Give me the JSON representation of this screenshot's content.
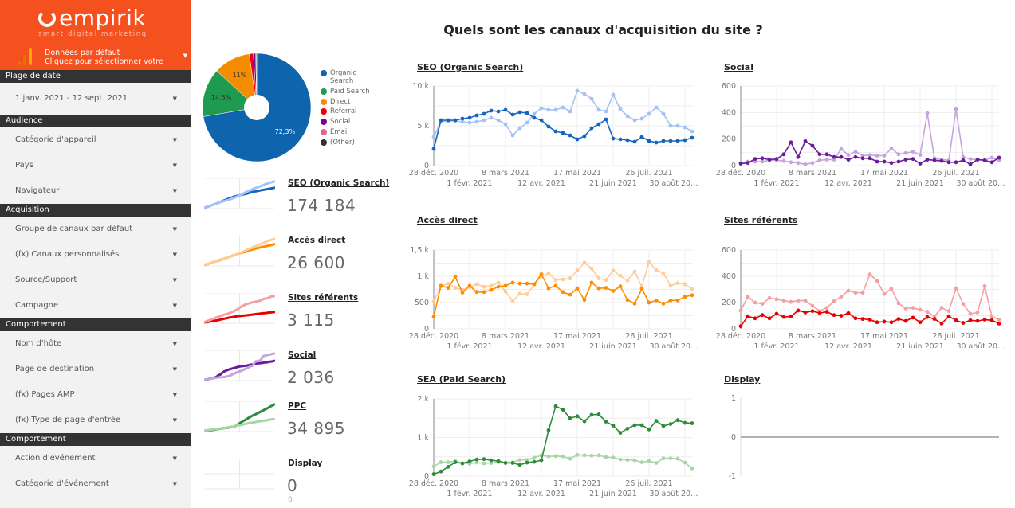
{
  "brand": {
    "logo_text": "empirik",
    "tagline": "smart digital marketing",
    "colors": {
      "header": "#f5511f"
    }
  },
  "data_source": {
    "line1": "Données par défaut",
    "line2": "Cliquez pour sélectionner votre",
    "icon": "analytics-bars-icon"
  },
  "sidebar": {
    "groups": [
      {
        "label": "Plage de date",
        "items": [
          "1 janv. 2021 - 12 sept. 2021"
        ]
      },
      {
        "label": "Audience",
        "items": [
          "Catégorie d'appareil",
          "Pays",
          "Navigateur"
        ]
      },
      {
        "label": "Acquisition",
        "items": [
          "Groupe de canaux par défaut",
          "(fx) Canaux personnalisés",
          "Source/Support",
          "Campagne"
        ]
      },
      {
        "label": "Comportement",
        "items": [
          "Nom d'hôte",
          "Page de destination",
          "(fx) Pages AMP",
          "(fx) Type de page d'entrée"
        ]
      },
      {
        "label": "Comportement",
        "items": [
          "Action d'événement",
          "Catégorie d'événement"
        ]
      }
    ]
  },
  "page_title": "Quels sont les canaux d'acquisition du site ?",
  "kpis": [
    {
      "title": "SEO (Organic Search)",
      "value": "174 184",
      "colors": [
        "#1565c0",
        "#a4c2f4"
      ],
      "chart": 0
    },
    {
      "title": "Accès direct",
      "value": "26 600",
      "colors": [
        "#ff8c00",
        "#ffcc99"
      ],
      "chart": 2
    },
    {
      "title": "Sites référents",
      "value": "3 115",
      "colors": [
        "#e60000",
        "#f4a0a0"
      ],
      "chart": 3
    },
    {
      "title": "Social",
      "value": "2 036",
      "colors": [
        "#6a1b9a",
        "#c5a3dc"
      ],
      "chart": 1
    },
    {
      "title": "PPC",
      "value": "34 895",
      "colors": [
        "#2e8b3a",
        "#a8d5a8"
      ],
      "chart": 4
    },
    {
      "title": "Display",
      "value": "0",
      "sub": "0",
      "chart": null
    }
  ],
  "chart_data": [
    {
      "type": "pie",
      "donut": true,
      "slices": [
        {
          "label": "Organic Search",
          "value": 72.3,
          "data_label": "72,3%",
          "color": "#0f64ae"
        },
        {
          "label": "Paid Search",
          "value": 14.5,
          "data_label": "14,5%",
          "color": "#1e9b50"
        },
        {
          "label": "Direct",
          "value": 11,
          "data_label": "11%",
          "color": "#f38c00"
        },
        {
          "label": "Referral",
          "value": 1.2,
          "color": "#e8000b"
        },
        {
          "label": "Social",
          "value": 0.7,
          "color": "#7b0099"
        },
        {
          "label": "Email",
          "value": 0.1,
          "color": "#ef5f8e"
        },
        {
          "label": "(Other)",
          "value": 0.2,
          "color": "#333333"
        }
      ],
      "legend": "right"
    },
    {
      "type": "line",
      "title": "SEO (Organic Search)",
      "ylim": [
        0,
        10000
      ],
      "y_ticks": [
        "0",
        "5 k",
        "10 k"
      ],
      "y_tick_values": [
        0,
        5000,
        10000
      ],
      "x_ticks": [
        "28 déc. 2020",
        "1 févr. 2021",
        "8 mars 2021",
        "12 avr. 2021",
        "17 mai 2021",
        "21 juin 2021",
        "26 juil. 2021",
        "30 août 20…"
      ],
      "series": [
        {
          "color": "#a4c2f4",
          "values": [
            3600,
            5500,
            5600,
            5600,
            5500,
            5400,
            5500,
            5700,
            6000,
            5700,
            5200,
            3800,
            4700,
            5400,
            6500,
            7200,
            7000,
            7000,
            7300,
            6800,
            9400,
            9000,
            8400,
            7000,
            6800,
            8900,
            7100,
            6200,
            5700,
            5900,
            6500,
            7300,
            6500,
            5000,
            5000,
            4800,
            4300
          ]
        },
        {
          "color": "#1565c0",
          "values": [
            2100,
            5700,
            5700,
            5700,
            5900,
            6000,
            6300,
            6500,
            6900,
            6800,
            7000,
            6400,
            6700,
            6600,
            6000,
            5700,
            4900,
            4300,
            4100,
            3800,
            3300,
            3700,
            4700,
            5200,
            5800,
            3400,
            3300,
            3200,
            3000,
            3600,
            3100,
            2900,
            3100,
            3100,
            3100,
            3200,
            3500
          ]
        }
      ]
    },
    {
      "type": "line",
      "title": "Social",
      "ylim": [
        0,
        600
      ],
      "y_ticks": [
        "0",
        "200",
        "400",
        "600"
      ],
      "y_tick_values": [
        0,
        200,
        400,
        600
      ],
      "x_ticks": [
        "28 déc. 2020",
        "1 févr. 2021",
        "8 mars 2021",
        "12 avr. 2021",
        "17 mai 2021",
        "21 juin 2021",
        "26 juil. 2021",
        "30 août 20…"
      ],
      "series": [
        {
          "color": "#c5a3dc",
          "values": [
            20,
            30,
            30,
            30,
            40,
            40,
            35,
            25,
            20,
            10,
            20,
            40,
            45,
            45,
            125,
            80,
            105,
            75,
            80,
            75,
            75,
            130,
            85,
            95,
            105,
            80,
            395,
            55,
            45,
            40,
            425,
            65,
            50,
            45,
            40,
            60,
            40
          ]
        },
        {
          "color": "#6a1b9a",
          "values": [
            15,
            20,
            50,
            55,
            45,
            50,
            85,
            175,
            65,
            185,
            150,
            85,
            85,
            65,
            65,
            45,
            65,
            55,
            55,
            30,
            30,
            20,
            30,
            45,
            50,
            15,
            45,
            40,
            35,
            25,
            25,
            40,
            10,
            45,
            40,
            25,
            60
          ]
        }
      ]
    },
    {
      "type": "line",
      "title": "Accès direct",
      "ylim": [
        0,
        1500
      ],
      "y_ticks": [
        "0",
        "500",
        "1 k",
        "1,5 k"
      ],
      "y_tick_values": [
        0,
        500,
        1000,
        1500
      ],
      "x_ticks": [
        "28 déc. 2020",
        "1 févr. 2021",
        "8 mars 2021",
        "12 avr. 2021",
        "17 mai 2021",
        "21 juin 2021",
        "26 juil. 2021",
        "30 août 20…"
      ],
      "series": [
        {
          "color": "#ffcc99",
          "values": [
            520,
            810,
            860,
            780,
            740,
            790,
            850,
            800,
            820,
            880,
            710,
            530,
            670,
            660,
            840,
            1000,
            1060,
            930,
            940,
            960,
            1110,
            1260,
            1150,
            960,
            930,
            1110,
            1010,
            920,
            1090,
            800,
            1270,
            1120,
            1060,
            820,
            870,
            850,
            760
          ]
        },
        {
          "color": "#ff8c00",
          "values": [
            230,
            820,
            780,
            990,
            690,
            820,
            700,
            700,
            740,
            800,
            820,
            880,
            860,
            860,
            850,
            1040,
            770,
            820,
            700,
            650,
            770,
            550,
            880,
            770,
            780,
            720,
            810,
            550,
            480,
            760,
            500,
            540,
            480,
            540,
            540,
            610,
            640
          ]
        }
      ]
    },
    {
      "type": "line",
      "title": "Sites référents",
      "ylim": [
        0,
        600
      ],
      "y_ticks": [
        "0",
        "200",
        "400",
        "600"
      ],
      "y_tick_values": [
        0,
        200,
        400,
        600
      ],
      "x_ticks": [
        "28 déc. 2020",
        "1 févr. 2021",
        "8 mars 2021",
        "12 avr. 2021",
        "17 mai 2021",
        "21 juin 2021",
        "26 juil. 2021",
        "30 août 20…"
      ],
      "series": [
        {
          "color": "#f4a0a0",
          "values": [
            140,
            245,
            200,
            190,
            235,
            225,
            215,
            205,
            215,
            215,
            175,
            135,
            160,
            210,
            245,
            290,
            275,
            275,
            415,
            365,
            265,
            305,
            195,
            155,
            160,
            145,
            130,
            95,
            160,
            135,
            310,
            190,
            115,
            125,
            325,
            95,
            70
          ]
        },
        {
          "color": "#e60000",
          "values": [
            20,
            95,
            80,
            105,
            80,
            115,
            90,
            95,
            140,
            125,
            135,
            120,
            130,
            105,
            100,
            120,
            80,
            75,
            70,
            50,
            55,
            50,
            75,
            60,
            85,
            50,
            90,
            75,
            40,
            95,
            65,
            45,
            65,
            60,
            70,
            65,
            40
          ]
        }
      ]
    },
    {
      "type": "line",
      "title": "SEA (Paid Search)",
      "ylim": [
        0,
        2000
      ],
      "y_ticks": [
        "0",
        "1 k",
        "2 k"
      ],
      "y_tick_values": [
        0,
        1000,
        2000
      ],
      "x_ticks": [
        "28 déc. 2020",
        "1 févr. 2021",
        "8 mars 2021",
        "12 avr. 2021",
        "17 mai 2021",
        "21 juin 2021",
        "26 juil. 2021",
        "30 août 20…"
      ],
      "series": [
        {
          "color": "#a8d5a8",
          "values": [
            250,
            360,
            360,
            390,
            330,
            320,
            350,
            330,
            340,
            360,
            350,
            360,
            420,
            420,
            480,
            540,
            510,
            520,
            510,
            450,
            550,
            540,
            530,
            540,
            490,
            480,
            430,
            420,
            410,
            360,
            390,
            340,
            460,
            460,
            450,
            350,
            200
          ]
        },
        {
          "color": "#2e8b3a",
          "values": [
            50,
            120,
            240,
            360,
            330,
            380,
            430,
            440,
            410,
            390,
            340,
            340,
            290,
            350,
            370,
            410,
            1190,
            1810,
            1720,
            1500,
            1550,
            1420,
            1590,
            1600,
            1410,
            1310,
            1120,
            1230,
            1320,
            1320,
            1210,
            1430,
            1300,
            1350,
            1450,
            1380,
            1370
          ]
        }
      ]
    },
    {
      "type": "line",
      "title": "Display",
      "ylim": [
        -1,
        1
      ],
      "y_ticks": [
        "-1",
        "0",
        "1"
      ],
      "y_tick_values": [
        -1,
        0,
        1
      ],
      "x_ticks": [],
      "series": [
        {
          "color": "#999999",
          "values": [
            0,
            0
          ]
        }
      ]
    }
  ]
}
